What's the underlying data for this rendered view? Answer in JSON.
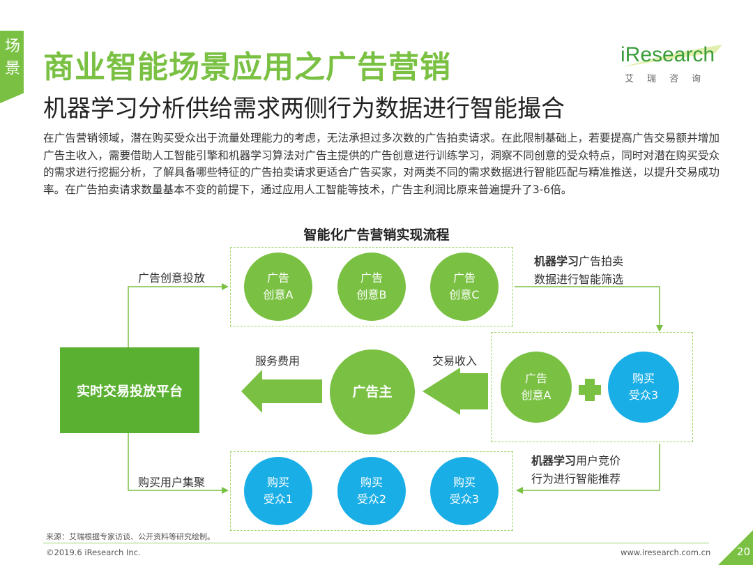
{
  "slide": {
    "side_tab": [
      "场",
      "景"
    ],
    "title": "商业智能场景应用之广告营销",
    "subtitle": "机器学习分析供给需求两侧行为数据进行智能撮合",
    "logo": {
      "word": "iResearch",
      "cn": "艾瑞咨询"
    },
    "description": "在广告营销领域，潜在购买受众出于流量处理能力的考虑，无法承担过多次数的广告拍卖请求。在此限制基础上，若要提高广告交易额并增加广告主收入，需要借助人工智能引擎和机器学习算法对广告主提供的广告创意进行训练学习，洞察不同创意的受众特点，同时对潜在购买受众的需求进行挖掘分析，了解具备哪些特征的广告拍卖请求更适合广告买家，对两类不同的需求数据进行智能匹配与精准推送，以提升交易成功率。在广告拍卖请求数量基本不变的前提下，通过应用人工智能等技术，广告主利润比原来普遍提升了3-6倍。",
    "flow_title": "智能化广告营销实现流程"
  },
  "flow": {
    "top_circles": [
      {
        "line1": "广告",
        "line2": "创意A"
      },
      {
        "line1": "广告",
        "line2": "创意B"
      },
      {
        "line1": "广告",
        "line2": "创意C"
      }
    ],
    "bottom_circles": [
      {
        "line1": "购买",
        "line2": "受众1"
      },
      {
        "line1": "购买",
        "line2": "受众2"
      },
      {
        "line1": "购买",
        "line2": "受众3"
      }
    ],
    "match_circles": {
      "left": {
        "line1": "广告",
        "line2": "创意A"
      },
      "right": {
        "line1": "购买",
        "line2": "受众3"
      }
    },
    "platform": "实时交易投放平台",
    "advertiser": "广告主",
    "labels": {
      "creative_delivery": "广告创意投放",
      "user_aggregation": "购买用户集聚",
      "service_fee": "服务费用",
      "trade_income": "交易收入",
      "ml_top_bold": "机器学习",
      "ml_top_rest": "广告拍卖",
      "ml_top_line2": "数据进行智能筛选",
      "ml_bottom_bold": "机器学习",
      "ml_bottom_rest": "用户竞价",
      "ml_bottom_line2": "行为进行智能推荐"
    }
  },
  "footer": {
    "source": "来源：艾瑞根据专家访谈、公开资料等研究绘制。",
    "copyright": "©2019.6 iResearch Inc.",
    "url": "www.iresearch.com.cn",
    "page": "20"
  },
  "colors": {
    "green": "#7ac143",
    "dark_green": "#5ab031",
    "blue": "#1aaee6"
  }
}
